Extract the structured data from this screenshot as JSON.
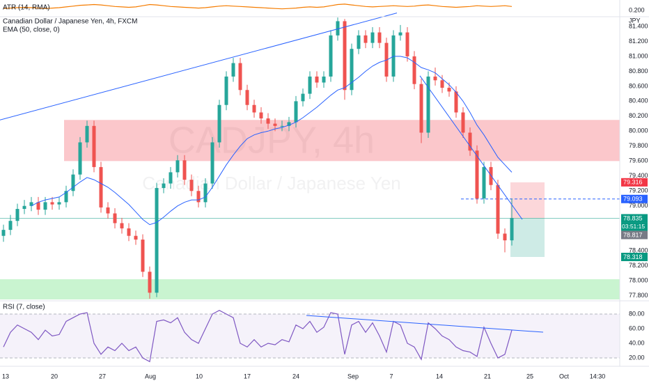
{
  "chart_data": [
    {
      "type": "line",
      "title": "ATR (14, RMA)",
      "color": "#f57c00",
      "ylim": [
        0.184,
        0.223
      ],
      "yticks": [
        {
          "value": 0.2,
          "label": "0.200"
        }
      ],
      "values": [
        0.205,
        0.206,
        0.207,
        0.208,
        0.207,
        0.206,
        0.205,
        0.206,
        0.207,
        0.209,
        0.211,
        0.213,
        0.214,
        0.215,
        0.214,
        0.212,
        0.21,
        0.209,
        0.208,
        0.209,
        0.212,
        0.215,
        0.214,
        0.212,
        0.21,
        0.209,
        0.208,
        0.207,
        0.206,
        0.207,
        0.209,
        0.211,
        0.212,
        0.211,
        0.21,
        0.209,
        0.208,
        0.207,
        0.206,
        0.205,
        0.204,
        0.205,
        0.206,
        0.208,
        0.209,
        0.208,
        0.209,
        0.212,
        0.215,
        0.216,
        0.214,
        0.212,
        0.21,
        0.209,
        0.21,
        0.211,
        0.212,
        0.211,
        0.21,
        0.211,
        0.213,
        0.214,
        0.212,
        0.21,
        0.209,
        0.208,
        0.209,
        0.21,
        0.212,
        0.211,
        0.21,
        0.211,
        0.212,
        0.21
      ]
    },
    {
      "type": "candlestick",
      "title": "Canadian Dollar / Japanese Yen, 4h, FXCM",
      "watermark": "CADJPY, 4h",
      "watermark_subtitle": "Canadian Dollar / Japanese Yen",
      "currency": "JPY",
      "up_color": "#26a69a",
      "down_color": "#ef5350",
      "xlim": [
        -0.5,
        88.5
      ],
      "xticks": [
        {
          "value": 0.3,
          "label": "13"
        },
        {
          "value": 7.3,
          "label": "20"
        },
        {
          "value": 14.2,
          "label": "27"
        },
        {
          "value": 21.1,
          "label": "Aug"
        },
        {
          "value": 28.1,
          "label": "10"
        },
        {
          "value": 35,
          "label": "17"
        },
        {
          "value": 42,
          "label": "24"
        },
        {
          "value": 50.2,
          "label": "Sep"
        },
        {
          "value": 55.7,
          "label": "7"
        },
        {
          "value": 62.6,
          "label": "14"
        },
        {
          "value": 69.5,
          "label": "21"
        },
        {
          "value": 75.6,
          "label": "25"
        },
        {
          "value": 80.5,
          "label": "Oct"
        },
        {
          "value": 85.3,
          "label": "14:30"
        }
      ],
      "ylim": [
        77.75,
        81.53
      ],
      "yticks": [
        {
          "value": 77.8,
          "label": "77.800"
        },
        {
          "value": 78,
          "label": "78.000"
        },
        {
          "value": 78.2,
          "label": "78.200"
        },
        {
          "value": 78.4,
          "label": "78.400"
        },
        {
          "value": 79,
          "label": "79.000"
        },
        {
          "value": 79.2,
          "label": "79.200"
        },
        {
          "value": 79.4,
          "label": "79.400"
        },
        {
          "value": 79.6,
          "label": "79.600"
        },
        {
          "value": 79.8,
          "label": "79.800"
        },
        {
          "value": 80,
          "label": "80.000"
        },
        {
          "value": 80.2,
          "label": "80.200"
        },
        {
          "value": 80.4,
          "label": "80.400"
        },
        {
          "value": 80.6,
          "label": "80.600"
        },
        {
          "value": 80.8,
          "label": "80.800"
        },
        {
          "value": 81,
          "label": "81.000"
        },
        {
          "value": 81.2,
          "label": "81.200"
        },
        {
          "value": 81.4,
          "label": "81.400"
        }
      ],
      "candles": [
        [
          78.6,
          78.75,
          78.52,
          78.68
        ],
        [
          78.68,
          78.88,
          78.61,
          78.8
        ],
        [
          78.8,
          79.03,
          78.73,
          78.96
        ],
        [
          78.96,
          79.08,
          78.89,
          79.0
        ],
        [
          79.0,
          79.12,
          78.93,
          79.05
        ],
        [
          79.05,
          79.12,
          78.88,
          78.95
        ],
        [
          78.95,
          79.12,
          78.88,
          79.05
        ],
        [
          79.05,
          79.12,
          78.95,
          79.02
        ],
        [
          79.02,
          79.12,
          78.95,
          79.05
        ],
        [
          79.05,
          79.27,
          78.98,
          79.2
        ],
        [
          79.2,
          79.49,
          79.13,
          79.42
        ],
        [
          79.42,
          79.92,
          79.35,
          79.85
        ],
        [
          79.85,
          80.14,
          79.78,
          80.07
        ],
        [
          80.07,
          80.14,
          79.45,
          79.52
        ],
        [
          79.52,
          79.59,
          78.91,
          78.98
        ],
        [
          78.98,
          79.05,
          78.83,
          78.9
        ],
        [
          78.9,
          78.97,
          78.7,
          78.77
        ],
        [
          78.77,
          78.84,
          78.63,
          78.7
        ],
        [
          78.7,
          78.77,
          78.53,
          78.6
        ],
        [
          78.6,
          78.67,
          78.48,
          78.55
        ],
        [
          78.55,
          78.62,
          78.05,
          78.12
        ],
        [
          78.12,
          78.19,
          77.76,
          77.84
        ],
        [
          77.84,
          79.31,
          77.78,
          79.24
        ],
        [
          79.24,
          79.37,
          79.17,
          79.3
        ],
        [
          79.3,
          79.52,
          79.23,
          79.45
        ],
        [
          79.45,
          79.68,
          79.38,
          79.61
        ],
        [
          79.61,
          79.68,
          79.28,
          79.35
        ],
        [
          79.35,
          79.42,
          79.13,
          79.2
        ],
        [
          79.2,
          79.27,
          78.98,
          79.05
        ],
        [
          79.05,
          79.37,
          78.98,
          79.3
        ],
        [
          79.3,
          79.92,
          79.23,
          79.85
        ],
        [
          79.85,
          80.42,
          79.78,
          80.35
        ],
        [
          80.35,
          80.8,
          80.28,
          80.73
        ],
        [
          80.73,
          80.98,
          80.66,
          80.91
        ],
        [
          80.91,
          80.98,
          80.48,
          80.55
        ],
        [
          80.55,
          80.62,
          80.28,
          80.35
        ],
        [
          80.35,
          80.42,
          80.18,
          80.25
        ],
        [
          80.25,
          80.32,
          80.1,
          80.17
        ],
        [
          80.17,
          80.24,
          80.03,
          80.1
        ],
        [
          80.1,
          80.17,
          80.0,
          80.07
        ],
        [
          80.07,
          80.14,
          80.0,
          80.07
        ],
        [
          80.07,
          80.19,
          80.0,
          80.12
        ],
        [
          80.12,
          80.47,
          80.05,
          80.4
        ],
        [
          80.4,
          80.57,
          80.33,
          80.5
        ],
        [
          80.5,
          80.8,
          80.43,
          80.73
        ],
        [
          80.73,
          80.8,
          80.58,
          80.65
        ],
        [
          80.65,
          80.8,
          80.58,
          80.73
        ],
        [
          80.73,
          81.35,
          80.66,
          81.28
        ],
        [
          81.28,
          81.52,
          81.21,
          81.47
        ],
        [
          81.47,
          81.5,
          80.42,
          80.55
        ],
        [
          80.55,
          81.17,
          80.48,
          81.1
        ],
        [
          81.1,
          81.35,
          81.03,
          81.28
        ],
        [
          81.28,
          81.35,
          81.11,
          81.18
        ],
        [
          81.18,
          81.39,
          81.11,
          81.32
        ],
        [
          81.32,
          81.39,
          81.11,
          81.18
        ],
        [
          81.18,
          81.25,
          80.66,
          80.73
        ],
        [
          80.73,
          81.35,
          80.66,
          81.28
        ],
        [
          81.28,
          81.42,
          81.21,
          81.32
        ],
        [
          81.32,
          81.39,
          80.93,
          81.0
        ],
        [
          81.0,
          81.07,
          80.56,
          80.63
        ],
        [
          80.63,
          80.7,
          79.84,
          79.98
        ],
        [
          79.98,
          80.8,
          79.91,
          80.73
        ],
        [
          80.73,
          80.85,
          80.61,
          80.68
        ],
        [
          80.68,
          80.75,
          80.51,
          80.58
        ],
        [
          80.58,
          80.65,
          80.46,
          80.53
        ],
        [
          80.53,
          80.6,
          80.18,
          80.25
        ],
        [
          80.25,
          80.32,
          79.91,
          79.98
        ],
        [
          79.98,
          80.05,
          79.67,
          79.74
        ],
        [
          79.74,
          79.81,
          79.03,
          79.1
        ],
        [
          79.1,
          79.59,
          79.03,
          79.52
        ],
        [
          79.52,
          79.59,
          79.21,
          79.28
        ],
        [
          79.28,
          79.35,
          78.56,
          78.63
        ],
        [
          78.63,
          78.7,
          78.38,
          78.54
        ],
        [
          78.54,
          79.1,
          78.47,
          78.84
        ]
      ],
      "series": [
        {
          "name": "EMA (50, close, 0)",
          "color": "#2962ff",
          "values": [
            null,
            null,
            null,
            null,
            79.0,
            79.05,
            79.08,
            79.1,
            79.12,
            79.18,
            79.25,
            79.32,
            79.38,
            79.35,
            79.3,
            79.25,
            79.18,
            79.1,
            79.02,
            78.92,
            78.82,
            78.75,
            78.78,
            78.85,
            78.93,
            79.0,
            79.05,
            79.08,
            79.08,
            79.12,
            79.25,
            79.4,
            79.55,
            79.68,
            79.8,
            79.9,
            79.95,
            79.98,
            80.0,
            80.03,
            80.05,
            80.08,
            80.12,
            80.18,
            80.25,
            80.32,
            80.4,
            80.48,
            80.55,
            80.58,
            80.65,
            80.72,
            80.8,
            80.87,
            80.92,
            80.95,
            81.0,
            81.0,
            80.98,
            80.92,
            80.85,
            80.82,
            80.78,
            80.7,
            80.62,
            80.52,
            80.4,
            80.25,
            80.08,
            79.95,
            79.8,
            79.65,
            79.55,
            79.45
          ]
        }
      ],
      "trendlines": [
        {
          "x": [
            -0.5,
            56.5
          ],
          "y": [
            80.15,
            81.58
          ],
          "color": "#2962ff"
        },
        {
          "x": [
            59.8,
            74.5
          ],
          "y": [
            80.74,
            78.82
          ],
          "color": "#2962ff"
        }
      ],
      "zones": [
        {
          "x": [
            8.7,
            88.5
          ],
          "y": [
            79.6,
            80.15
          ],
          "color": "rgba(242,54,69,0.28)"
        },
        {
          "x": [
            -0.5,
            88.5
          ],
          "y": [
            77.75,
            78.02
          ],
          "color": "rgba(76,217,100,0.3)"
        }
      ],
      "position": {
        "x": [
          72.8,
          77.7
        ],
        "entry": 78.835,
        "stop": 79.316,
        "target": 78.318,
        "entry_color": "#089981",
        "stop_color": "#f23645",
        "target_color": "#089981",
        "countdown": "03:51:15"
      },
      "level": {
        "x": [
          65.7,
          88.5
        ],
        "value": 79.093,
        "color": "#2962ff"
      },
      "prev_close": {
        "value": 78.817,
        "color": "#787b86"
      }
    },
    {
      "type": "line",
      "title": "RSI (7, close)",
      "color": "#7e57c2",
      "ylim": [
        12.4,
        95.2
      ],
      "band": [
        20,
        80
      ],
      "yticks": [
        {
          "value": 20,
          "label": "20.00"
        },
        {
          "value": 40,
          "label": "40.00"
        },
        {
          "value": 60,
          "label": "60.00"
        },
        {
          "value": 80,
          "label": "80.00"
        }
      ],
      "trendlines": [
        {
          "x": [
            43.5,
            77.5
          ],
          "y": [
            78.1,
            55.2
          ],
          "color": "#2962ff"
        }
      ],
      "values": [
        35,
        55,
        65,
        60,
        55,
        45,
        58,
        50,
        52,
        70,
        75,
        80,
        82,
        40,
        25,
        35,
        30,
        40,
        30,
        35,
        20,
        15,
        70,
        72,
        68,
        75,
        55,
        45,
        40,
        60,
        80,
        85,
        80,
        75,
        40,
        35,
        45,
        35,
        40,
        38,
        45,
        42,
        65,
        60,
        70,
        55,
        62,
        82,
        80,
        25,
        65,
        70,
        55,
        68,
        50,
        28,
        70,
        65,
        40,
        35,
        18,
        68,
        60,
        50,
        45,
        35,
        30,
        28,
        22,
        62,
        40,
        20,
        25,
        58
      ]
    }
  ]
}
